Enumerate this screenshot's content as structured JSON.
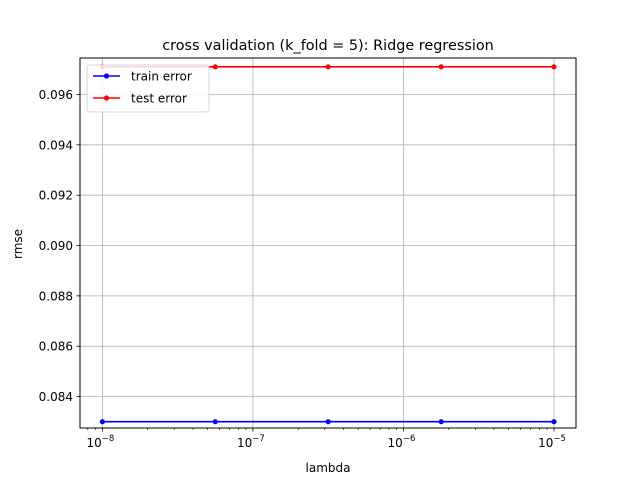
{
  "chart_data": {
    "type": "line",
    "title": "cross validation (k_fold = 5): Ridge regression",
    "xlabel": "lambda",
    "ylabel": "rmse",
    "xscale": "log",
    "xlim": [
      7.1e-09,
      1.4e-05
    ],
    "ylim": [
      0.08275,
      0.09745
    ],
    "grid": true,
    "legend_position": "top-left",
    "x": [
      1e-08,
      5.62e-08,
      3.16e-07,
      1.78e-06,
      1e-05
    ],
    "x_major_ticks": [
      {
        "value": 1e-08,
        "base": "10",
        "exp": "−8"
      },
      {
        "value": 1e-07,
        "base": "10",
        "exp": "−7"
      },
      {
        "value": 1e-06,
        "base": "10",
        "exp": "−6"
      },
      {
        "value": 1e-05,
        "base": "10",
        "exp": "−5"
      }
    ],
    "y_ticks": [
      "0.084",
      "0.086",
      "0.088",
      "0.090",
      "0.092",
      "0.094",
      "0.096"
    ],
    "series": [
      {
        "name": "train error",
        "color": "#0000ff",
        "values": [
          0.083,
          0.083,
          0.083,
          0.083,
          0.083
        ]
      },
      {
        "name": "test error",
        "color": "#ff0000",
        "values": [
          0.0971,
          0.0971,
          0.0971,
          0.0971,
          0.0971
        ]
      }
    ]
  }
}
